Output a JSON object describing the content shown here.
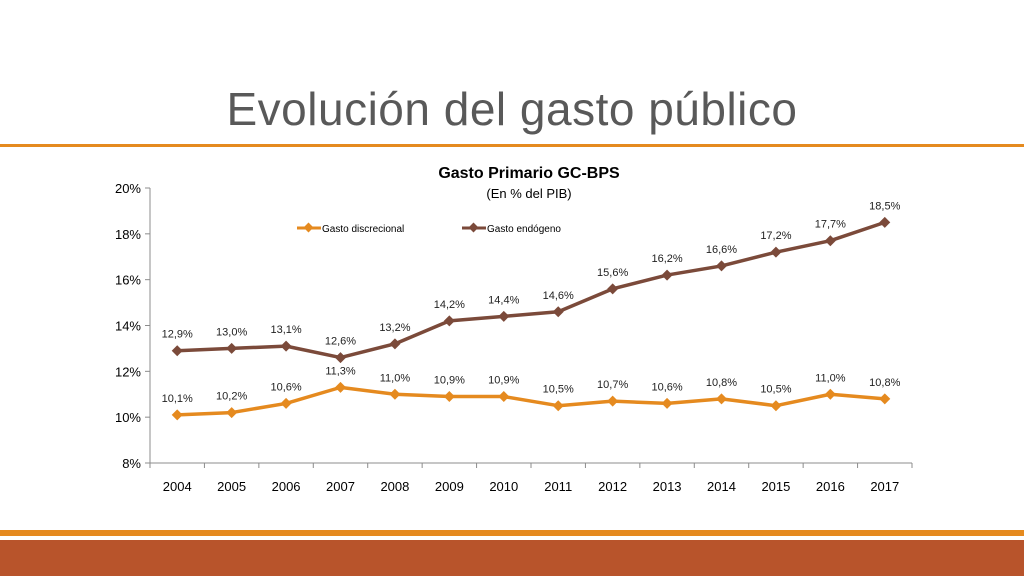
{
  "slide": {
    "title": "Evolución del gasto público"
  },
  "colors": {
    "accent": "#E58A1F",
    "footer": "#B8542B",
    "series1": "#E58A1F",
    "series2": "#7B4A3A"
  },
  "chart_data": {
    "type": "line",
    "title": "Gasto Primario GC-BPS",
    "subtitle": "(En % del PIB)",
    "categories": [
      "2004",
      "2005",
      "2006",
      "2007",
      "2008",
      "2009",
      "2010",
      "2011",
      "2012",
      "2013",
      "2014",
      "2015",
      "2016",
      "2017"
    ],
    "ylim": [
      8,
      20
    ],
    "yticks": [
      8,
      10,
      12,
      14,
      16,
      18,
      20
    ],
    "ytick_labels": [
      "8%",
      "10%",
      "12%",
      "14%",
      "16%",
      "18%",
      "20%"
    ],
    "legend_position": "top",
    "series": [
      {
        "name": "Gasto discrecional",
        "color": "#E58A1F",
        "values": [
          10.1,
          10.2,
          10.6,
          11.3,
          11.0,
          10.9,
          10.9,
          10.5,
          10.7,
          10.6,
          10.8,
          10.5,
          11.0,
          10.8
        ],
        "labels": [
          "10,1%",
          "10,2%",
          "10,6%",
          "11,3%",
          "11,0%",
          "10,9%",
          "10,9%",
          "10,5%",
          "10,7%",
          "10,6%",
          "10,8%",
          "10,5%",
          "11,0%",
          "10,8%"
        ]
      },
      {
        "name": "Gasto endógeno",
        "color": "#7B4A3A",
        "values": [
          12.9,
          13.0,
          13.1,
          12.6,
          13.2,
          14.2,
          14.4,
          14.6,
          15.6,
          16.2,
          16.6,
          17.2,
          17.7,
          18.5
        ],
        "labels": [
          "12,9%",
          "13,0%",
          "13,1%",
          "12,6%",
          "13,2%",
          "14,2%",
          "14,4%",
          "14,6%",
          "15,6%",
          "16,2%",
          "16,6%",
          "17,2%",
          "17,7%",
          "18,5%"
        ]
      }
    ]
  }
}
